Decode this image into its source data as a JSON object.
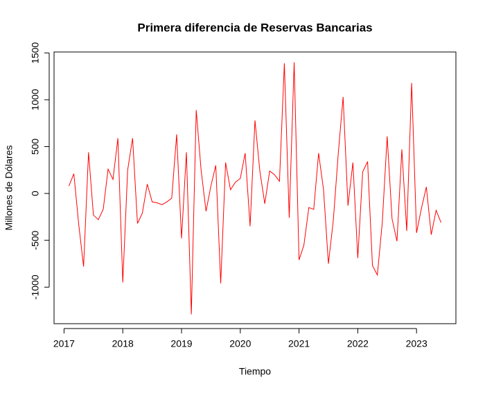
{
  "chart_data": {
    "type": "line",
    "title": "Primera diferencia de Reservas Bancarias",
    "x_label": "Tiempo",
    "y_label": "Millones de Dólares",
    "color": "#ff0000",
    "x": [
      2017.083,
      2017.167,
      2017.25,
      2017.333,
      2017.417,
      2017.5,
      2017.583,
      2017.667,
      2017.75,
      2017.833,
      2017.917,
      2018,
      2018.083,
      2018.167,
      2018.25,
      2018.333,
      2018.417,
      2018.5,
      2018.583,
      2018.667,
      2018.75,
      2018.833,
      2018.917,
      2019,
      2019.083,
      2019.167,
      2019.25,
      2019.333,
      2019.417,
      2019.5,
      2019.583,
      2019.667,
      2019.75,
      2019.833,
      2019.917,
      2020,
      2020.083,
      2020.167,
      2020.25,
      2020.333,
      2020.417,
      2020.5,
      2020.583,
      2020.667,
      2020.75,
      2020.833,
      2020.917,
      2021,
      2021.083,
      2021.167,
      2021.25,
      2021.333,
      2021.417,
      2021.5,
      2021.583,
      2021.667,
      2021.75,
      2021.833,
      2021.917,
      2022,
      2022.083,
      2022.167,
      2022.25,
      2022.333,
      2022.417,
      2022.5,
      2022.583,
      2022.667,
      2022.75,
      2022.833,
      2022.917,
      2023,
      2023.083,
      2023.167,
      2023.25,
      2023.333,
      2023.417
    ],
    "values": [
      80,
      210,
      -330,
      -780,
      440,
      -230,
      -280,
      -170,
      260,
      150,
      590,
      -950,
      250,
      590,
      -320,
      -210,
      100,
      -90,
      -100,
      -120,
      -90,
      -50,
      630,
      -480,
      440,
      -1290,
      890,
      250,
      -190,
      80,
      300,
      -960,
      330,
      40,
      120,
      160,
      430,
      -350,
      780,
      240,
      -110,
      240,
      200,
      130,
      1390,
      -260,
      1400,
      -710,
      -550,
      -150,
      -170,
      430,
      40,
      -750,
      -290,
      420,
      1030,
      -130,
      330,
      -690,
      230,
      340,
      -770,
      -870,
      -310,
      610,
      -270,
      -510,
      470,
      -400,
      1180,
      -420,
      -160,
      70,
      -440,
      -180,
      -310
    ],
    "xlim": [
      2016.83,
      2023.67
    ],
    "xticks": [
      2017,
      2018,
      2019,
      2020,
      2021,
      2022,
      2023
    ],
    "ylim": [
      -1390,
      1510
    ],
    "yticks": [
      -1000,
      -500,
      0,
      500,
      1000,
      1500
    ]
  }
}
